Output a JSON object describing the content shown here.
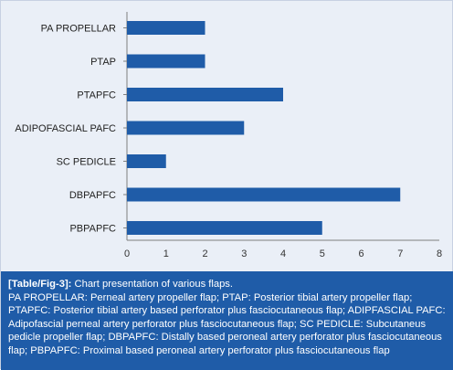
{
  "chart_data": {
    "type": "bar",
    "orientation": "horizontal",
    "categories": [
      "PA PROPELLAR",
      "PTAP",
      "PTAPFC",
      "ADIPOFASCIAL PAFC",
      "SC PEDICLE",
      "DBPAPFC",
      "PBPAPFC"
    ],
    "values": [
      2,
      2,
      4,
      3,
      1,
      7,
      5
    ],
    "xlim": [
      0,
      8
    ],
    "x_ticks": [
      "0",
      "1",
      "2",
      "3",
      "4",
      "5",
      "6",
      "7",
      "8"
    ],
    "grid": false,
    "legend": "none",
    "bar_color": "#1f5ca8"
  },
  "caption": {
    "lead": "[Table/Fig-3]:",
    "title": " Chart presentation of various flaps.",
    "text": "PA PROPELLAR: Perneal artery propeller flap; PTAP: Posterior tibial artery propeller flap; PTAPFC: Posterior tibial artery based perforator plus fasciocutaneous flap; ADIPFASCIAL PAFC: Adipofascial perneal artery perforator plus fasciocutaneous flap; SC PEDICLE: Subcutaneus pedicle propeller flap; DBPAPFC: Distally based peroneal artery perforator plus fasciocutaneous flap; PBPAPFC: Proximal based peroneal artery perforator plus fasciocutaneous flap"
  }
}
